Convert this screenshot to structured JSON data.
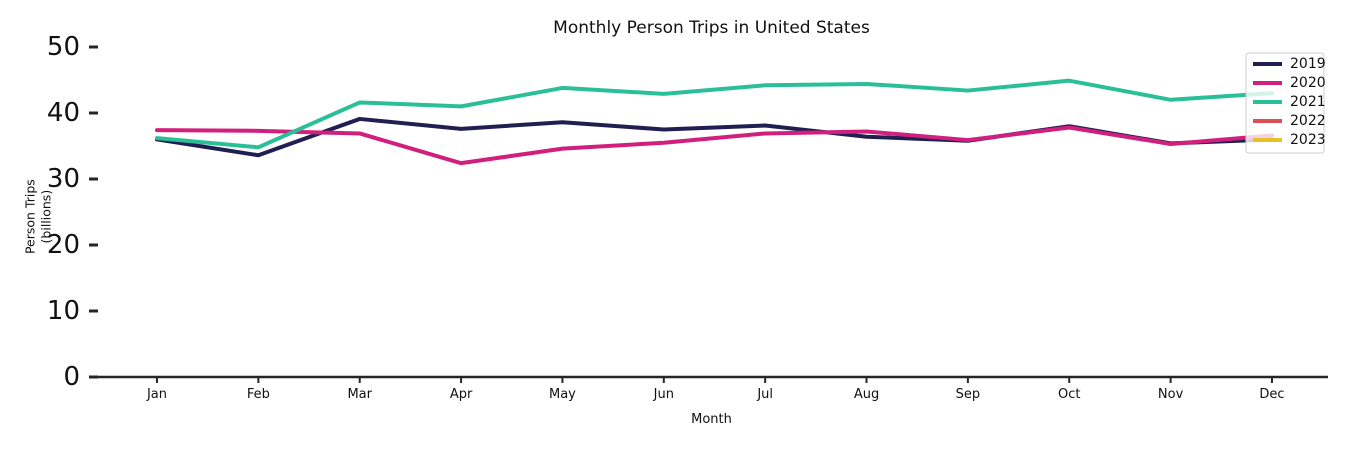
{
  "figure": {
    "title": "Monthly Person Trips in United States",
    "xlabel": "Month",
    "ylabel_line1": "Person Trips",
    "ylabel_line2": "(billions)"
  },
  "chart_data": {
    "type": "line",
    "title": "Monthly Person Trips in United States",
    "xlabel": "Month",
    "ylabel": "Person Trips (billions)",
    "categories": [
      "Jan",
      "Feb",
      "Mar",
      "Apr",
      "May",
      "Jun",
      "Jul",
      "Aug",
      "Sep",
      "Oct",
      "Nov",
      "Dec"
    ],
    "series": [
      {
        "name": "2019",
        "color": "#211f52",
        "values": [
          36.0,
          33.6,
          39.1,
          37.6,
          38.6,
          37.5,
          38.1,
          36.4,
          35.8,
          38.0,
          35.4,
          36.0
        ]
      },
      {
        "name": "2020",
        "color": "#d11f7e",
        "values": [
          37.4,
          37.3,
          36.9,
          32.4,
          34.6,
          35.5,
          36.9,
          37.2,
          35.9,
          37.8,
          35.3,
          36.6
        ]
      },
      {
        "name": "2021",
        "color": "#2bbf98",
        "values": [
          36.2,
          34.8,
          41.6,
          41.0,
          43.8,
          42.9,
          44.2,
          44.4,
          43.4,
          44.9,
          42.0,
          43.0
        ]
      },
      {
        "name": "2022",
        "color": "#dd5152",
        "values": []
      },
      {
        "name": "2023",
        "color": "#e8c02a",
        "values": []
      }
    ],
    "ylim": [
      0,
      50
    ],
    "yticks": [
      0,
      10,
      20,
      30,
      40,
      50
    ],
    "legend_position": "upper right",
    "grid": false
  },
  "colors": {
    "background": "#ffffff",
    "text": "#111111",
    "spine": "#262626",
    "legend_border": "#cccccc",
    "legend_fill": "rgba(255,255,255,0.8)"
  }
}
